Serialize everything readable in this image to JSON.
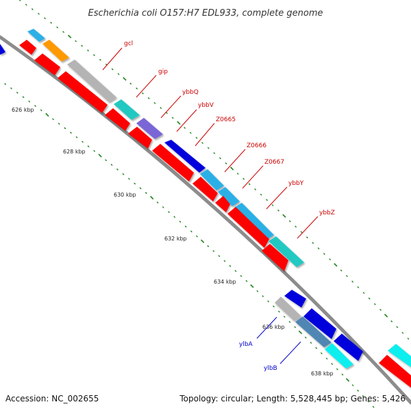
{
  "title": "Escherichia coli O157:H7 EDL933, complete genome",
  "footer": {
    "accession": "Accession: NC_002655",
    "topology": "Topology: circular; Length: 5,528,445 bp; Genes: 5,426"
  },
  "colors": {
    "backbone": "#8c8c8c",
    "tick": "#2d8a2d",
    "label_forward": "#cc0000",
    "label_reverse": "#0000cc",
    "gene_red": "#ff0000",
    "gene_blue": "#0000dd",
    "gene_cyan": "#2bb0e6",
    "gene_teal": "#22c9c1",
    "gene_gray": "#b4b4b4",
    "gene_orange": "#ff9900",
    "gene_purple": "#7a66d6",
    "gene_steel": "#4f86b3",
    "gene_aqua": "#11eeee"
  },
  "scale_labels": [
    "626 kbp",
    "628 kbp",
    "630 kbp",
    "632 kbp",
    "634 kbp",
    "636 kbp",
    "638 kbp"
  ],
  "gene_labels": [
    {
      "text": "gcl",
      "strand": "forward"
    },
    {
      "text": "gip",
      "strand": "forward"
    },
    {
      "text": "ybbQ",
      "strand": "forward"
    },
    {
      "text": "ybbV",
      "strand": "forward"
    },
    {
      "text": "Z0665",
      "strand": "forward"
    },
    {
      "text": "Z0666",
      "strand": "forward"
    },
    {
      "text": "Z0667",
      "strand": "forward"
    },
    {
      "text": "ybbY",
      "strand": "forward"
    },
    {
      "text": "ybbZ",
      "strand": "forward"
    },
    {
      "text": "ylbA",
      "strand": "reverse"
    },
    {
      "text": "ylbB",
      "strand": "reverse"
    }
  ]
}
